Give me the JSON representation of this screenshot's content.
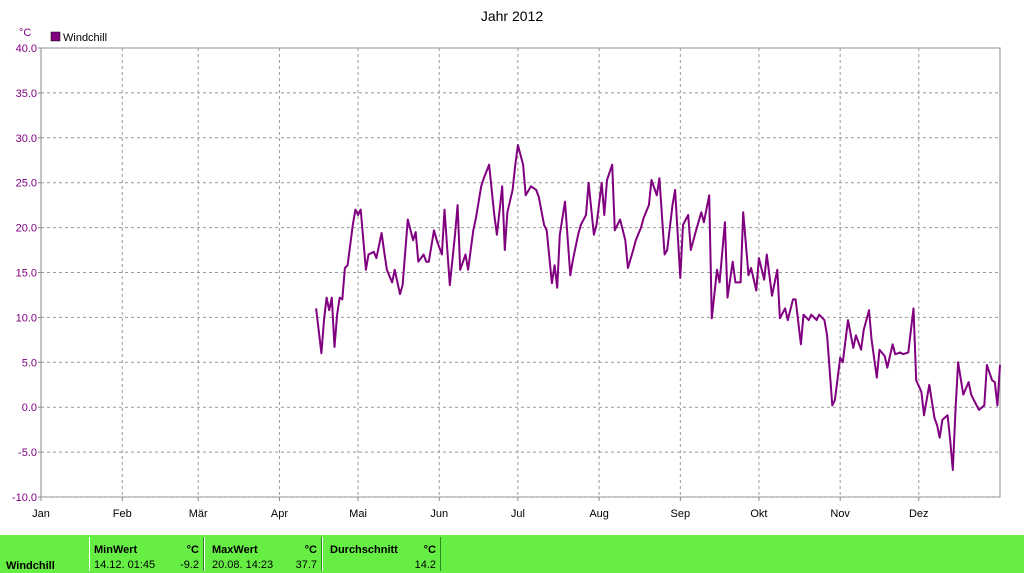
{
  "chart_data": {
    "type": "line",
    "title": "Jahr 2012",
    "y_unit": "°C",
    "legend": "top-left",
    "grid": true,
    "xlim": [
      0,
      366
    ],
    "xticks": [
      {
        "value": 0,
        "label": "Jan"
      },
      {
        "value": 31,
        "label": "Feb"
      },
      {
        "value": 60,
        "label": "Mär"
      },
      {
        "value": 91,
        "label": "Apr"
      },
      {
        "value": 121,
        "label": "Mai"
      },
      {
        "value": 152,
        "label": "Jun"
      },
      {
        "value": 182,
        "label": "Jul"
      },
      {
        "value": 213,
        "label": "Aug"
      },
      {
        "value": 244,
        "label": "Sep"
      },
      {
        "value": 274,
        "label": "Okt"
      },
      {
        "value": 305,
        "label": "Nov"
      },
      {
        "value": 335,
        "label": "Dez"
      }
    ],
    "ylim": [
      -10,
      40
    ],
    "yticks": [
      {
        "value": 40,
        "label": "40.0"
      },
      {
        "value": 35,
        "label": "35.0"
      },
      {
        "value": 30,
        "label": "30.0"
      },
      {
        "value": 25,
        "label": "25.0"
      },
      {
        "value": 20,
        "label": "20.0"
      },
      {
        "value": 15,
        "label": "15.0"
      },
      {
        "value": 10,
        "label": "10.0"
      },
      {
        "value": 5,
        "label": "5.0"
      },
      {
        "value": 0,
        "label": "0.0"
      },
      {
        "value": -5,
        "label": "-5.0"
      },
      {
        "value": -10,
        "label": "-10.0"
      }
    ],
    "x": [
      105,
      107,
      108,
      109,
      110,
      111,
      112,
      113,
      114,
      115,
      116,
      117,
      119,
      120,
      121,
      122,
      124,
      125,
      127,
      128,
      130,
      131,
      132,
      134,
      135,
      137,
      138,
      140,
      142,
      143,
      144,
      146,
      147,
      148,
      150,
      151,
      153,
      154,
      156,
      158,
      159,
      160,
      162,
      163,
      165,
      166,
      168,
      169,
      171,
      173,
      174,
      176,
      177,
      178,
      180,
      181,
      182,
      184,
      185,
      187,
      189,
      190,
      192,
      193,
      195,
      196,
      197,
      198,
      200,
      202,
      203,
      205,
      206,
      208,
      209,
      211,
      212,
      214,
      215,
      216,
      218,
      219,
      221,
      223,
      224,
      226,
      227,
      229,
      230,
      232,
      233,
      235,
      236,
      238,
      239,
      241,
      242,
      244,
      245,
      247,
      248,
      250,
      252,
      253,
      255,
      256,
      258,
      259,
      261,
      262,
      264,
      265,
      267,
      268,
      270,
      271,
      273,
      274,
      276,
      277,
      279,
      281,
      282,
      284,
      285,
      287,
      288,
      290,
      291,
      293,
      294,
      296,
      297,
      299,
      300,
      302,
      303,
      305,
      306,
      308,
      310,
      311,
      313,
      314,
      316,
      317,
      319,
      320,
      322,
      323,
      325,
      326,
      328,
      329,
      331,
      333,
      334,
      336,
      337,
      339,
      341,
      342,
      343,
      344,
      346,
      347,
      348,
      349,
      350,
      352,
      354,
      355,
      356,
      358,
      360,
      361,
      363,
      364,
      365,
      366
    ],
    "series": [
      {
        "name": "Windchill",
        "color": "#800080",
        "values": [
          11.0,
          6.0,
          9.7,
          12.2,
          10.8,
          12.2,
          6.7,
          10.3,
          12.2,
          12.0,
          15.5,
          15.8,
          20.3,
          22.0,
          21.4,
          22.0,
          15.3,
          17.0,
          17.3,
          16.6,
          19.4,
          17.3,
          15.3,
          13.9,
          15.3,
          12.6,
          13.6,
          20.9,
          18.6,
          19.5,
          16.2,
          17.0,
          16.2,
          16.2,
          19.7,
          18.6,
          17.0,
          22.0,
          13.6,
          19.2,
          22.5,
          15.3,
          17.0,
          15.3,
          19.7,
          21.1,
          24.6,
          25.5,
          27.0,
          21.4,
          19.2,
          24.6,
          17.5,
          21.7,
          24.2,
          27.0,
          29.2,
          27.0,
          23.6,
          24.6,
          24.2,
          23.4,
          20.3,
          19.7,
          13.8,
          15.8,
          13.3,
          19.2,
          22.9,
          14.7,
          16.4,
          19.2,
          20.3,
          21.4,
          25.0,
          19.2,
          20.3,
          25.0,
          21.4,
          25.3,
          27.0,
          19.7,
          20.9,
          18.6,
          15.5,
          17.5,
          18.6,
          20.0,
          21.1,
          22.5,
          25.3,
          23.6,
          25.5,
          17.0,
          17.5,
          22.5,
          24.2,
          14.4,
          20.3,
          21.4,
          17.5,
          19.7,
          21.7,
          20.6,
          23.6,
          9.9,
          15.3,
          13.9,
          20.6,
          12.2,
          16.2,
          13.9,
          13.9,
          21.7,
          14.7,
          15.5,
          13.0,
          16.6,
          14.2,
          17.0,
          12.4,
          15.3,
          9.9,
          11.0,
          9.7,
          12.0,
          12.0,
          7.0,
          10.3,
          9.7,
          10.3,
          9.7,
          10.3,
          9.7,
          8.0,
          0.2,
          0.8,
          5.5,
          5.0,
          9.7,
          6.6,
          8.0,
          6.4,
          8.6,
          10.8,
          7.5,
          3.3,
          6.4,
          5.7,
          4.4,
          7.0,
          5.9,
          6.1,
          5.9,
          6.1,
          11.0,
          3.0,
          1.7,
          -0.9,
          2.5,
          -1.2,
          -2.0,
          -3.4,
          -1.4,
          -0.9,
          -3.7,
          -7.0,
          -0.3,
          5.0,
          1.4,
          2.8,
          1.4,
          0.8,
          -0.3,
          0.2,
          4.7,
          3.0,
          2.8,
          0.2,
          4.7
        ]
      }
    ]
  },
  "summary": {
    "label": "Windchill",
    "columns": [
      {
        "header": "MinWert",
        "unit": "°C",
        "time": "14.12. 01:45",
        "value": -9.2
      },
      {
        "header": "MaxWert",
        "unit": "°C",
        "time": "20.08. 14:23",
        "value": 37.7
      },
      {
        "header": "Durchschnitt",
        "unit": "°C",
        "value": 14.2
      }
    ]
  }
}
